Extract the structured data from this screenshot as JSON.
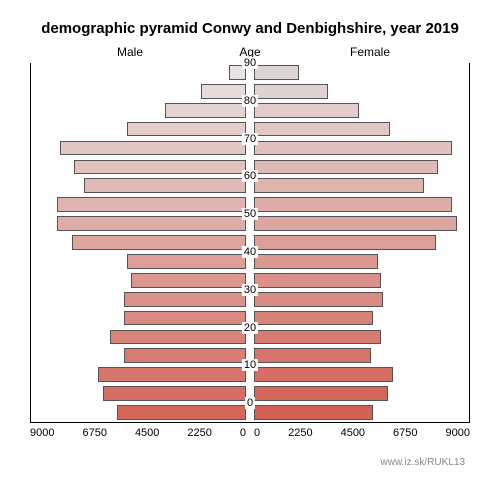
{
  "title": "demographic pyramid Conwy and Denbighshire, year 2019",
  "labels": {
    "male": "Male",
    "age": "Age",
    "female": "Female"
  },
  "watermark": "www.iz.sk/RUKL13",
  "axis": {
    "max": 9000,
    "ticks_left": [
      "9000",
      "6750",
      "4500",
      "2250",
      "0"
    ],
    "ticks_right": [
      "0",
      "2250",
      "4500",
      "6750",
      "9000"
    ]
  },
  "age_ticks": [
    {
      "value": "90",
      "row": 0
    },
    {
      "value": "80",
      "row": 2
    },
    {
      "value": "70",
      "row": 4
    },
    {
      "value": "60",
      "row": 6
    },
    {
      "value": "50",
      "row": 8
    },
    {
      "value": "40",
      "row": 10
    },
    {
      "value": "30",
      "row": 12
    },
    {
      "value": "20",
      "row": 14
    },
    {
      "value": "10",
      "row": 16
    },
    {
      "value": "0",
      "row": 18
    }
  ],
  "bar_border_color": "#555555",
  "background_color": "#ffffff",
  "axis_color": "#000000",
  "bars": [
    {
      "male": 700,
      "female": 1900,
      "color_m": "#e8e4e3",
      "color_f": "#dcd5d4"
    },
    {
      "male": 1900,
      "female": 3100,
      "color_m": "#e5dcda",
      "color_f": "#e0d2d0"
    },
    {
      "male": 3400,
      "female": 4400,
      "color_m": "#e4d4d2",
      "color_f": "#e1cdca"
    },
    {
      "male": 5000,
      "female": 5700,
      "color_m": "#e3cecb",
      "color_f": "#e1c8c5"
    },
    {
      "male": 7800,
      "female": 8300,
      "color_m": "#e2c8c4",
      "color_f": "#e0c1bd"
    },
    {
      "male": 7200,
      "female": 7700,
      "color_m": "#e1c1bd",
      "color_f": "#e0bbb6"
    },
    {
      "male": 6800,
      "female": 7100,
      "color_m": "#e0bab5",
      "color_f": "#dfb4af"
    },
    {
      "male": 7900,
      "female": 8300,
      "color_m": "#dfb4ae",
      "color_f": "#deada7"
    },
    {
      "male": 7900,
      "female": 8500,
      "color_m": "#deada7",
      "color_f": "#dda6a0"
    },
    {
      "male": 7300,
      "female": 7600,
      "color_m": "#dda69f",
      "color_f": "#dc9f98"
    },
    {
      "male": 5000,
      "female": 5200,
      "color_m": "#dc9f98",
      "color_f": "#db9891"
    },
    {
      "male": 4800,
      "female": 5300,
      "color_m": "#db9890",
      "color_f": "#da9189"
    },
    {
      "male": 5100,
      "female": 5400,
      "color_m": "#da9189",
      "color_f": "#d98a82"
    },
    {
      "male": 5100,
      "female": 5000,
      "color_m": "#d98a82",
      "color_f": "#d8837a"
    },
    {
      "male": 5700,
      "female": 5300,
      "color_m": "#d8837a",
      "color_f": "#d77c73"
    },
    {
      "male": 5100,
      "female": 4900,
      "color_m": "#d77c73",
      "color_f": "#d6756b"
    },
    {
      "male": 6200,
      "female": 5800,
      "color_m": "#d6756b",
      "color_f": "#d56e64"
    },
    {
      "male": 6000,
      "female": 5600,
      "color_m": "#d56e64",
      "color_f": "#d4675c"
    },
    {
      "male": 5400,
      "female": 5000,
      "color_m": "#d4675c",
      "color_f": "#d36055"
    }
  ]
}
